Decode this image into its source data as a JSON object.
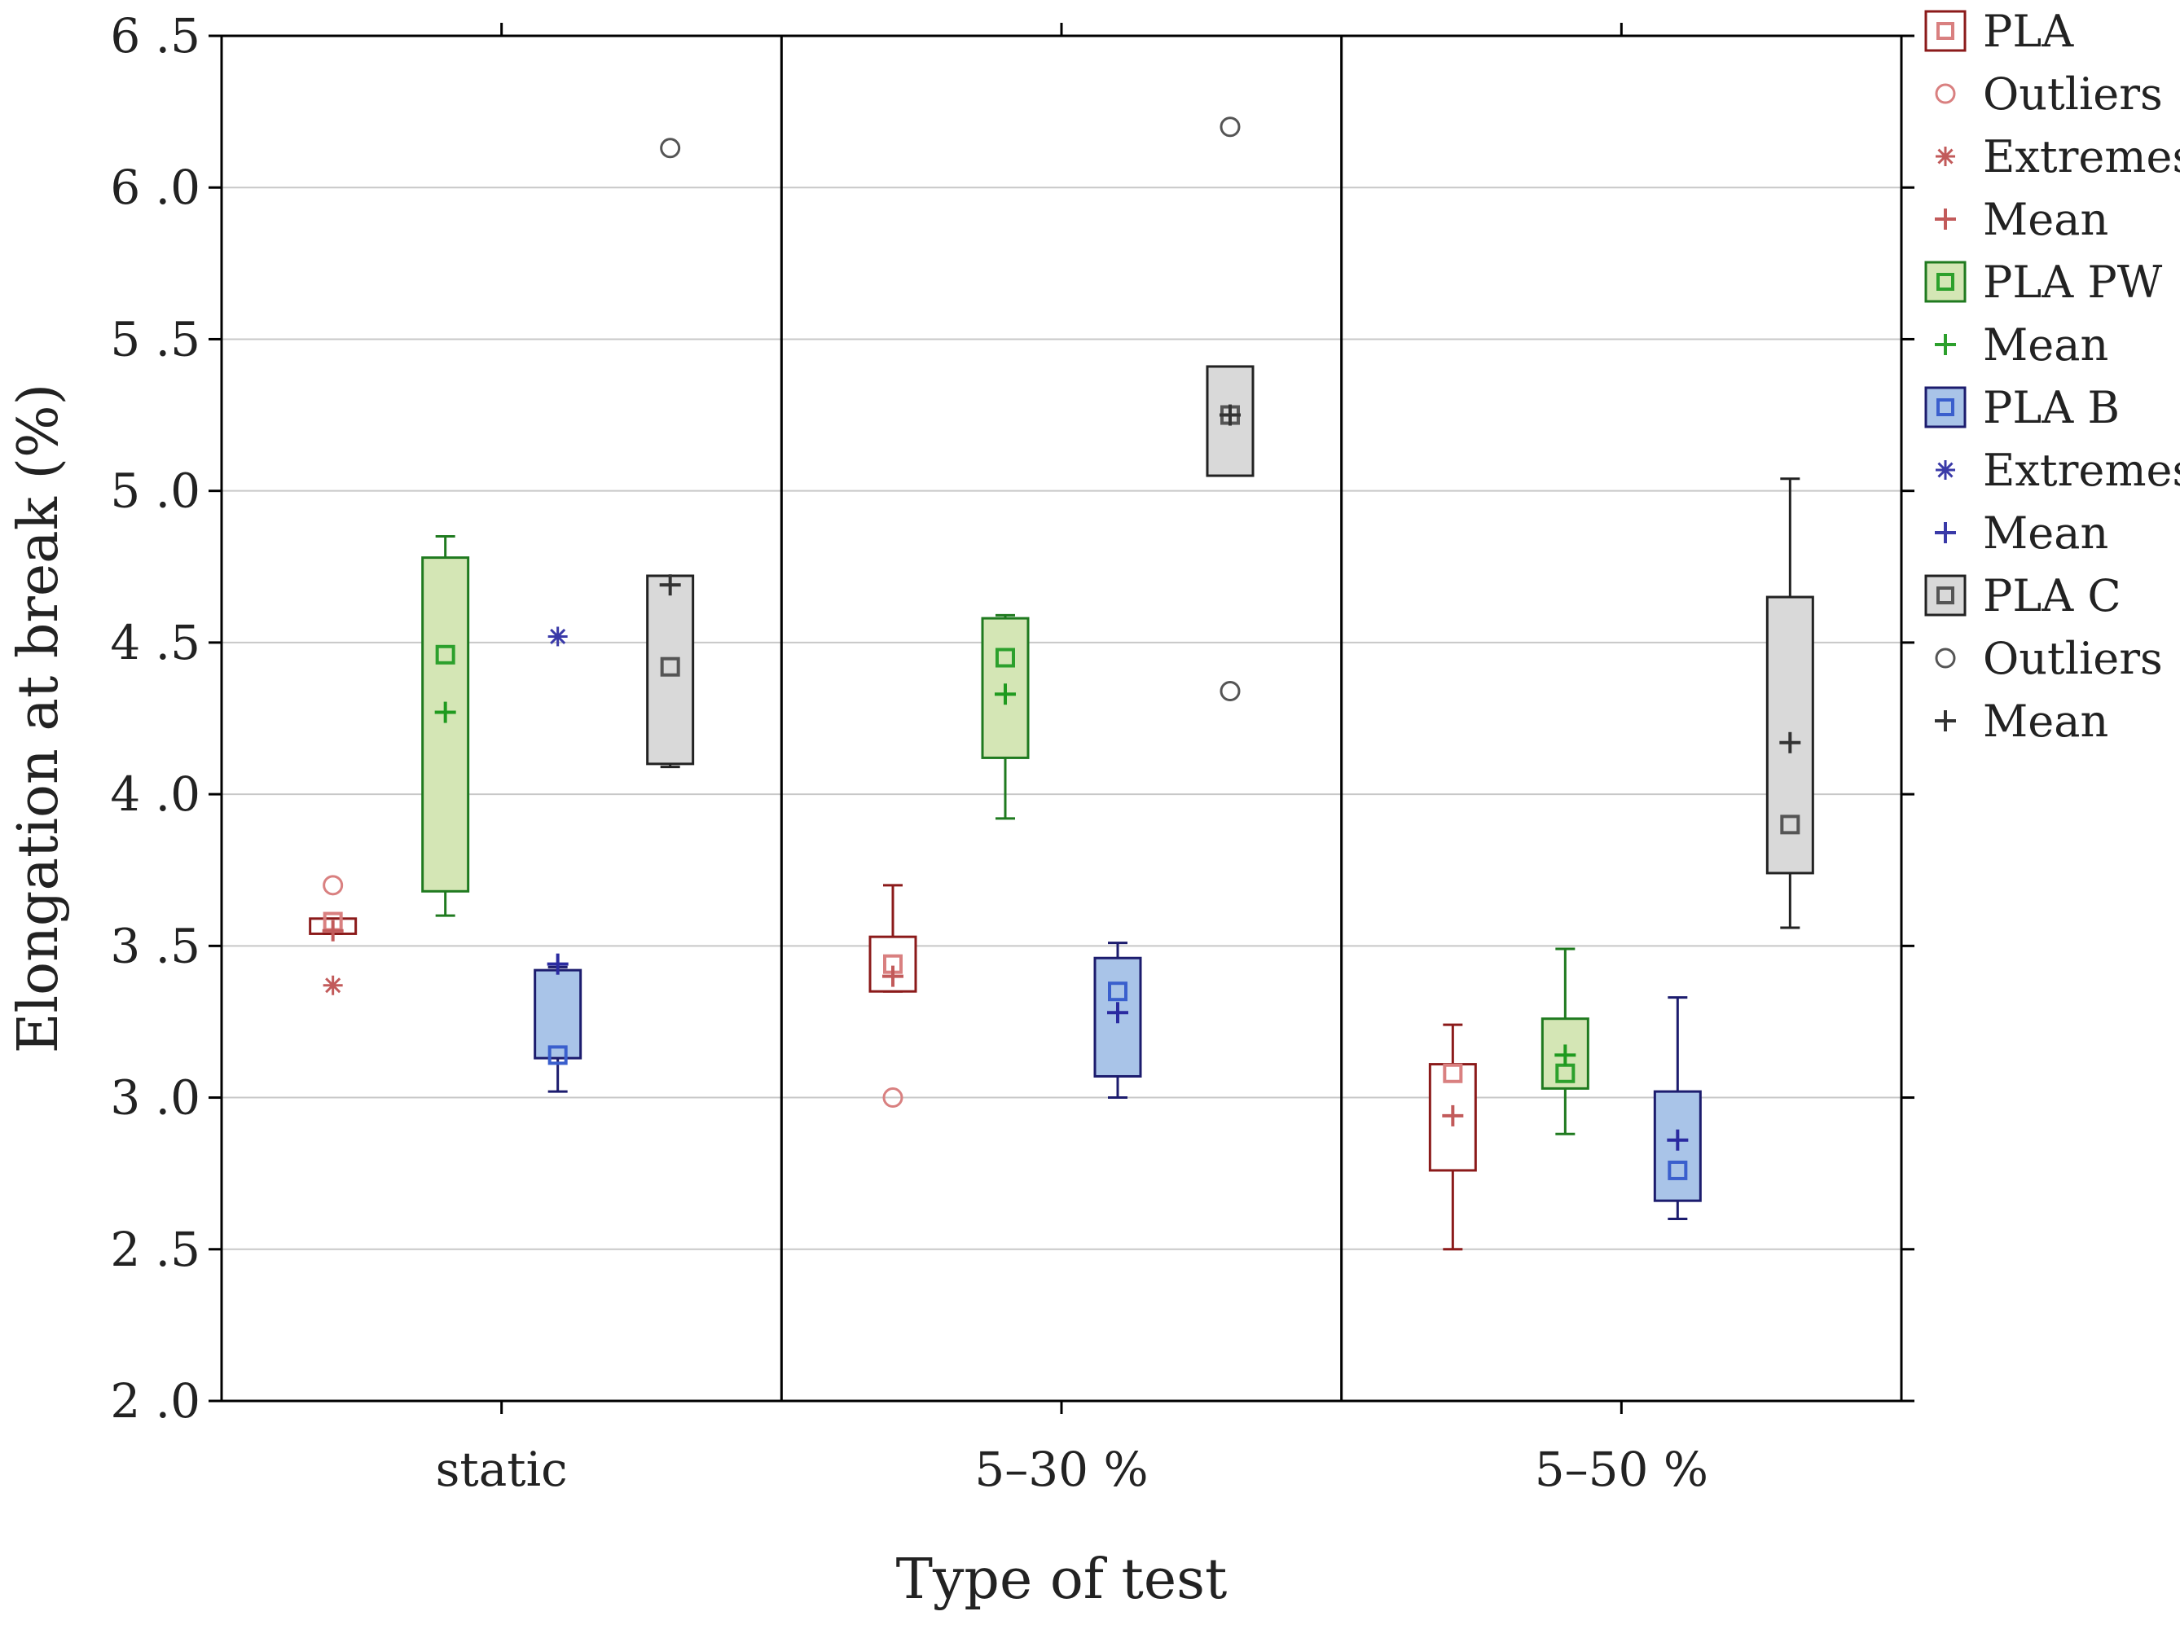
{
  "chart_data": {
    "type": "box",
    "xlabel": "Type of test",
    "ylabel": "Elongation at break (%)",
    "ylim": [
      2.0,
      6.5
    ],
    "yticks": [
      2.0,
      2.5,
      3.0,
      3.5,
      4.0,
      4.5,
      5.0,
      5.5,
      6.0,
      6.5
    ],
    "ytick_labels": [
      "2 .0",
      "2 .5",
      "3 .0",
      "3 .5",
      "4 .0",
      "4 .5",
      "5 .0",
      "5 .5",
      "6 .0",
      "6 .5"
    ],
    "categories": [
      "static",
      "5–30 %",
      "5–50 %"
    ],
    "grid": true,
    "legend_position": "right",
    "series": [
      {
        "name": "PLA",
        "color": "#8b1a1a",
        "fill": "#ffffff",
        "marker_color": "#d98080",
        "boxes": [
          {
            "median": 3.58,
            "q1": 3.54,
            "q3": 3.59,
            "min": 3.54,
            "max": 3.59,
            "mean": 3.55,
            "outliers": [
              3.7
            ],
            "extremes": [
              3.37
            ]
          },
          {
            "median": 3.44,
            "q1": 3.35,
            "q3": 3.53,
            "min": 3.35,
            "max": 3.7,
            "mean": 3.4,
            "outliers": [
              3.0
            ],
            "extremes": []
          },
          {
            "median": 3.08,
            "q1": 2.76,
            "q3": 3.11,
            "min": 2.5,
            "max": 3.24,
            "mean": 2.94,
            "outliers": [],
            "extremes": []
          }
        ]
      },
      {
        "name": "PLA PW",
        "color": "#1f7a1f",
        "fill": "#d4e6b5",
        "marker_color": "#2ca02c",
        "boxes": [
          {
            "median": 4.46,
            "q1": 3.68,
            "q3": 4.78,
            "min": 3.6,
            "max": 4.85,
            "mean": 4.27,
            "outliers": [],
            "extremes": []
          },
          {
            "median": 4.45,
            "q1": 4.12,
            "q3": 4.58,
            "min": 3.92,
            "max": 4.59,
            "mean": 4.33,
            "outliers": [],
            "extremes": []
          },
          {
            "median": 3.08,
            "q1": 3.03,
            "q3": 3.26,
            "min": 2.88,
            "max": 3.49,
            "mean": 3.14,
            "outliers": [],
            "extremes": []
          }
        ]
      },
      {
        "name": "PLA B",
        "color": "#1c1c6e",
        "fill": "#a9c4e8",
        "marker_color": "#3a5fcd",
        "boxes": [
          {
            "median": 3.14,
            "q1": 3.13,
            "q3": 3.42,
            "min": 3.02,
            "max": 3.43,
            "mean": 3.44,
            "outliers": [],
            "extremes": [
              4.52
            ]
          },
          {
            "median": 3.35,
            "q1": 3.07,
            "q3": 3.46,
            "min": 3.0,
            "max": 3.51,
            "mean": 3.28,
            "outliers": [],
            "extremes": []
          },
          {
            "median": 2.76,
            "q1": 2.66,
            "q3": 3.02,
            "min": 2.6,
            "max": 3.33,
            "mean": 2.86,
            "outliers": [],
            "extremes": []
          }
        ]
      },
      {
        "name": "PLA C",
        "color": "#222222",
        "fill": "#d9d9d9",
        "marker_color": "#555555",
        "boxes": [
          {
            "median": 4.42,
            "q1": 4.1,
            "q3": 4.72,
            "min": 4.09,
            "max": 4.72,
            "mean": 4.69,
            "outliers": [
              6.13
            ],
            "extremes": []
          },
          {
            "median": 5.25,
            "q1": 5.05,
            "q3": 5.41,
            "min": 5.05,
            "max": 5.41,
            "mean": 5.25,
            "outliers": [
              6.2,
              4.34
            ],
            "extremes": []
          },
          {
            "median": 3.9,
            "q1": 3.74,
            "q3": 4.65,
            "min": 3.56,
            "max": 5.04,
            "mean": 4.17,
            "outliers": [],
            "extremes": []
          }
        ]
      }
    ],
    "legend": [
      {
        "label": "PLA",
        "kind": "box",
        "color": "#8b1a1a",
        "fill": "#ffffff",
        "marker_color": "#d98080"
      },
      {
        "label": "Outliers",
        "kind": "outlier",
        "color": "#d98080"
      },
      {
        "label": "Extremes",
        "kind": "extreme",
        "color": "#c25a5a"
      },
      {
        "label": "Mean",
        "kind": "mean",
        "color": "#c25a5a"
      },
      {
        "label": "PLA PW",
        "kind": "box",
        "color": "#1f7a1f",
        "fill": "#d4e6b5",
        "marker_color": "#2ca02c"
      },
      {
        "label": "Mean",
        "kind": "mean",
        "color": "#2ca02c"
      },
      {
        "label": "PLA B",
        "kind": "box",
        "color": "#1c1c6e",
        "fill": "#a9c4e8",
        "marker_color": "#3a5fcd"
      },
      {
        "label": "Extremes",
        "kind": "extreme",
        "color": "#3a3aa8"
      },
      {
        "label": "Mean",
        "kind": "mean",
        "color": "#3a3aa8"
      },
      {
        "label": "PLA C",
        "kind": "box",
        "color": "#222222",
        "fill": "#d9d9d9",
        "marker_color": "#555555"
      },
      {
        "label": "Outliers",
        "kind": "outlier",
        "color": "#555555"
      },
      {
        "label": "Mean",
        "kind": "mean",
        "color": "#333333"
      }
    ]
  }
}
